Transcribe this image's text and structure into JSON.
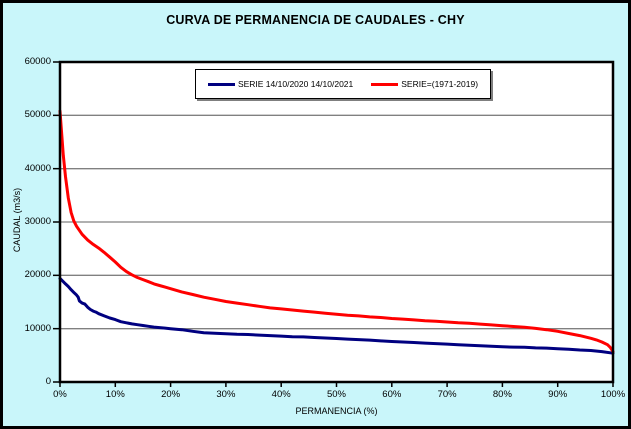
{
  "chart_data": {
    "type": "line",
    "title": "CURVA DE PERMANENCIA DE CAUDALES - CHY",
    "xlabel": "PERMANENCIA (%)",
    "ylabel": "CAUDAL (m3/s)",
    "xlim": [
      0,
      100
    ],
    "ylim": [
      0,
      60000
    ],
    "x_tick_labels": [
      "0%",
      "10%",
      "20%",
      "30%",
      "40%",
      "50%",
      "60%",
      "70%",
      "80%",
      "90%",
      "100%"
    ],
    "y_tick_labels": [
      "0",
      "10000",
      "20000",
      "30000",
      "40000",
      "50000",
      "60000"
    ],
    "grid": "horizontal-gray",
    "legend_position": "top-center-inside",
    "plot_bg": "#FFFFFF",
    "outer_bg": "#C9F6FA",
    "gridline_color": "#808080",
    "frame_color": "#000000",
    "series": [
      {
        "name": "SERIE 14/10/2020 14/10/2021",
        "color": "#000080",
        "points": [
          [
            0,
            19400
          ],
          [
            0.5,
            18900
          ],
          [
            1,
            18400
          ],
          [
            1.5,
            17900
          ],
          [
            2,
            17300
          ],
          [
            2.5,
            16800
          ],
          [
            3,
            16300
          ],
          [
            3.3,
            15900
          ],
          [
            3.5,
            15200
          ],
          [
            4,
            14800
          ],
          [
            4.5,
            14600
          ],
          [
            5,
            14000
          ],
          [
            5.5,
            13600
          ],
          [
            6,
            13300
          ],
          [
            6.5,
            13100
          ],
          [
            7,
            12800
          ],
          [
            8,
            12400
          ],
          [
            9,
            12000
          ],
          [
            10,
            11700
          ],
          [
            11,
            11300
          ],
          [
            12,
            11100
          ],
          [
            13,
            10900
          ],
          [
            14,
            10750
          ],
          [
            15,
            10600
          ],
          [
            16,
            10450
          ],
          [
            17,
            10300
          ],
          [
            18,
            10200
          ],
          [
            19,
            10100
          ],
          [
            20,
            10000
          ],
          [
            22,
            9800
          ],
          [
            24,
            9500
          ],
          [
            26,
            9250
          ],
          [
            28,
            9150
          ],
          [
            30,
            9050
          ],
          [
            32,
            8950
          ],
          [
            34,
            8900
          ],
          [
            36,
            8800
          ],
          [
            38,
            8700
          ],
          [
            40,
            8600
          ],
          [
            42,
            8500
          ],
          [
            44,
            8450
          ],
          [
            46,
            8350
          ],
          [
            48,
            8250
          ],
          [
            50,
            8150
          ],
          [
            52,
            8050
          ],
          [
            54,
            7950
          ],
          [
            56,
            7850
          ],
          [
            58,
            7700
          ],
          [
            60,
            7600
          ],
          [
            62,
            7500
          ],
          [
            64,
            7400
          ],
          [
            66,
            7300
          ],
          [
            68,
            7200
          ],
          [
            70,
            7100
          ],
          [
            72,
            7000
          ],
          [
            74,
            6900
          ],
          [
            76,
            6800
          ],
          [
            78,
            6700
          ],
          [
            80,
            6600
          ],
          [
            82,
            6550
          ],
          [
            84,
            6500
          ],
          [
            86,
            6400
          ],
          [
            88,
            6350
          ],
          [
            90,
            6250
          ],
          [
            92,
            6150
          ],
          [
            94,
            6000
          ],
          [
            96,
            5900
          ],
          [
            98,
            5700
          ],
          [
            100,
            5400
          ]
        ]
      },
      {
        "name": "SERIE=(1971-2019)",
        "color": "#FF0000",
        "points": [
          [
            0,
            50800
          ],
          [
            0.3,
            46500
          ],
          [
            0.6,
            42500
          ],
          [
            1,
            38500
          ],
          [
            1.5,
            34500
          ],
          [
            2,
            31800
          ],
          [
            2.5,
            30200
          ],
          [
            3,
            29200
          ],
          [
            4,
            27700
          ],
          [
            5,
            26600
          ],
          [
            6,
            25800
          ],
          [
            7,
            25100
          ],
          [
            8,
            24300
          ],
          [
            9,
            23400
          ],
          [
            10,
            22500
          ],
          [
            11,
            21500
          ],
          [
            12,
            20700
          ],
          [
            13,
            20100
          ],
          [
            14,
            19600
          ],
          [
            15,
            19200
          ],
          [
            16,
            18800
          ],
          [
            17,
            18400
          ],
          [
            18,
            18100
          ],
          [
            19,
            17800
          ],
          [
            20,
            17500
          ],
          [
            22,
            16900
          ],
          [
            24,
            16400
          ],
          [
            26,
            15900
          ],
          [
            28,
            15500
          ],
          [
            30,
            15100
          ],
          [
            32,
            14800
          ],
          [
            34,
            14500
          ],
          [
            36,
            14200
          ],
          [
            38,
            13900
          ],
          [
            40,
            13700
          ],
          [
            42,
            13500
          ],
          [
            44,
            13300
          ],
          [
            46,
            13100
          ],
          [
            48,
            12900
          ],
          [
            50,
            12700
          ],
          [
            52,
            12500
          ],
          [
            54,
            12400
          ],
          [
            56,
            12200
          ],
          [
            58,
            12100
          ],
          [
            60,
            11900
          ],
          [
            62,
            11800
          ],
          [
            64,
            11650
          ],
          [
            66,
            11500
          ],
          [
            68,
            11400
          ],
          [
            70,
            11250
          ],
          [
            72,
            11100
          ],
          [
            74,
            11000
          ],
          [
            76,
            10850
          ],
          [
            78,
            10700
          ],
          [
            80,
            10550
          ],
          [
            82,
            10400
          ],
          [
            84,
            10250
          ],
          [
            86,
            10050
          ],
          [
            88,
            9800
          ],
          [
            90,
            9500
          ],
          [
            92,
            9100
          ],
          [
            94,
            8700
          ],
          [
            96,
            8200
          ],
          [
            97,
            7900
          ],
          [
            98,
            7500
          ],
          [
            99,
            7000
          ],
          [
            99.5,
            6500
          ],
          [
            100,
            5700
          ]
        ]
      }
    ]
  }
}
